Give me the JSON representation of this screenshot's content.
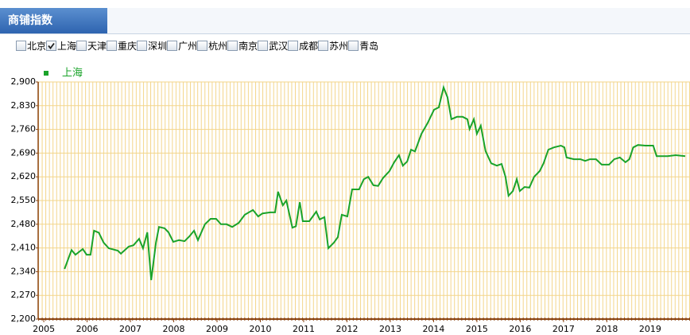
{
  "header": {
    "title": "商铺指数"
  },
  "cities": [
    {
      "name": "北京",
      "checked": false
    },
    {
      "name": "上海",
      "checked": true
    },
    {
      "name": "天津",
      "checked": false
    },
    {
      "name": "重庆",
      "checked": false
    },
    {
      "name": "深圳",
      "checked": false
    },
    {
      "name": "广州",
      "checked": false
    },
    {
      "name": "杭州",
      "checked": false
    },
    {
      "name": "南京",
      "checked": false
    },
    {
      "name": "武汉",
      "checked": false
    },
    {
      "name": "成都",
      "checked": false
    },
    {
      "name": "苏州",
      "checked": false
    },
    {
      "name": "青岛",
      "checked": false
    }
  ],
  "chart_data": {
    "type": "line",
    "xlim": [
      2004.87,
      2019.92
    ],
    "xticks": [
      2005,
      2006,
      2007,
      2008,
      2009,
      2010,
      2011,
      2012,
      2013,
      2014,
      2015,
      2016,
      2017,
      2018,
      2019
    ],
    "ylim": [
      2200,
      2900
    ],
    "yticks": [
      {
        "value": 2200,
        "label": "2,200"
      },
      {
        "value": 2270,
        "label": "2,270"
      },
      {
        "value": 2340,
        "label": "2,340"
      },
      {
        "value": 2410,
        "label": "2,410"
      },
      {
        "value": 2480,
        "label": "2,480"
      },
      {
        "value": 2550,
        "label": "2,550"
      },
      {
        "value": 2620,
        "label": "2,620"
      },
      {
        "value": 2690,
        "label": "2,690"
      },
      {
        "value": 2760,
        "label": "2,760"
      },
      {
        "value": 2830,
        "label": "2,830"
      },
      {
        "value": 2900,
        "label": "2,900"
      }
    ],
    "grid": true,
    "x": [
      2005.48,
      2005.64,
      2005.73,
      2005.9,
      2005.99,
      2006.08,
      2006.16,
      2006.27,
      2006.38,
      2006.5,
      2006.71,
      2006.78,
      2006.96,
      2007.07,
      2007.2,
      2007.29,
      2007.39,
      2007.48,
      2007.59,
      2007.66,
      2007.79,
      2007.88,
      2007.99,
      2008.12,
      2008.25,
      2008.36,
      2008.47,
      2008.56,
      2008.72,
      2008.85,
      2008.98,
      2009.09,
      2009.22,
      2009.35,
      2009.5,
      2009.64,
      2009.83,
      2009.95,
      2010.05,
      2010.23,
      2010.34,
      2010.41,
      2010.52,
      2010.6,
      2010.74,
      2010.82,
      2010.91,
      2010.98,
      2011.13,
      2011.29,
      2011.37,
      2011.48,
      2011.57,
      2011.7,
      2011.79,
      2011.88,
      2012.01,
      2012.12,
      2012.28,
      2012.39,
      2012.49,
      2012.61,
      2012.72,
      2012.83,
      2012.98,
      2013.09,
      2013.2,
      2013.29,
      2013.39,
      2013.48,
      2013.57,
      2013.72,
      2013.86,
      2014.01,
      2014.12,
      2014.23,
      2014.32,
      2014.41,
      2014.54,
      2014.67,
      2014.78,
      2014.83,
      2014.93,
      2015.0,
      2015.09,
      2015.2,
      2015.33,
      2015.46,
      2015.57,
      2015.66,
      2015.73,
      2015.83,
      2015.92,
      2015.99,
      2016.1,
      2016.21,
      2016.32,
      2016.45,
      2016.54,
      2016.65,
      2016.78,
      2016.94,
      2017.02,
      2017.07,
      2017.24,
      2017.39,
      2017.5,
      2017.61,
      2017.75,
      2017.88,
      2018.05,
      2018.17,
      2018.3,
      2018.43,
      2018.52,
      2018.61,
      2018.72,
      2018.89,
      2019.07,
      2019.15,
      2019.4,
      2019.59,
      2019.81
    ],
    "series": [
      {
        "name": "上海",
        "color": "#1aa32a",
        "values": [
          2348,
          2404,
          2390,
          2407,
          2390,
          2390,
          2461,
          2455,
          2426,
          2409,
          2402,
          2393,
          2414,
          2418,
          2437,
          2409,
          2456,
          2315,
          2426,
          2472,
          2468,
          2456,
          2428,
          2433,
          2430,
          2444,
          2461,
          2433,
          2480,
          2496,
          2496,
          2480,
          2480,
          2472,
          2484,
          2508,
          2522,
          2503,
          2512,
          2515,
          2515,
          2576,
          2536,
          2550,
          2470,
          2474,
          2545,
          2489,
          2489,
          2517,
          2494,
          2501,
          2409,
          2426,
          2442,
          2508,
          2503,
          2583,
          2583,
          2613,
          2620,
          2595,
          2593,
          2616,
          2637,
          2663,
          2684,
          2653,
          2665,
          2700,
          2695,
          2747,
          2778,
          2818,
          2825,
          2884,
          2855,
          2790,
          2797,
          2797,
          2790,
          2761,
          2790,
          2747,
          2771,
          2696,
          2660,
          2653,
          2658,
          2620,
          2564,
          2578,
          2613,
          2578,
          2590,
          2588,
          2620,
          2637,
          2660,
          2700,
          2707,
          2712,
          2707,
          2677,
          2672,
          2672,
          2667,
          2672,
          2672,
          2656,
          2656,
          2672,
          2677,
          2663,
          2672,
          2707,
          2714,
          2712,
          2712,
          2681,
          2681,
          2684,
          2681
        ]
      }
    ]
  }
}
